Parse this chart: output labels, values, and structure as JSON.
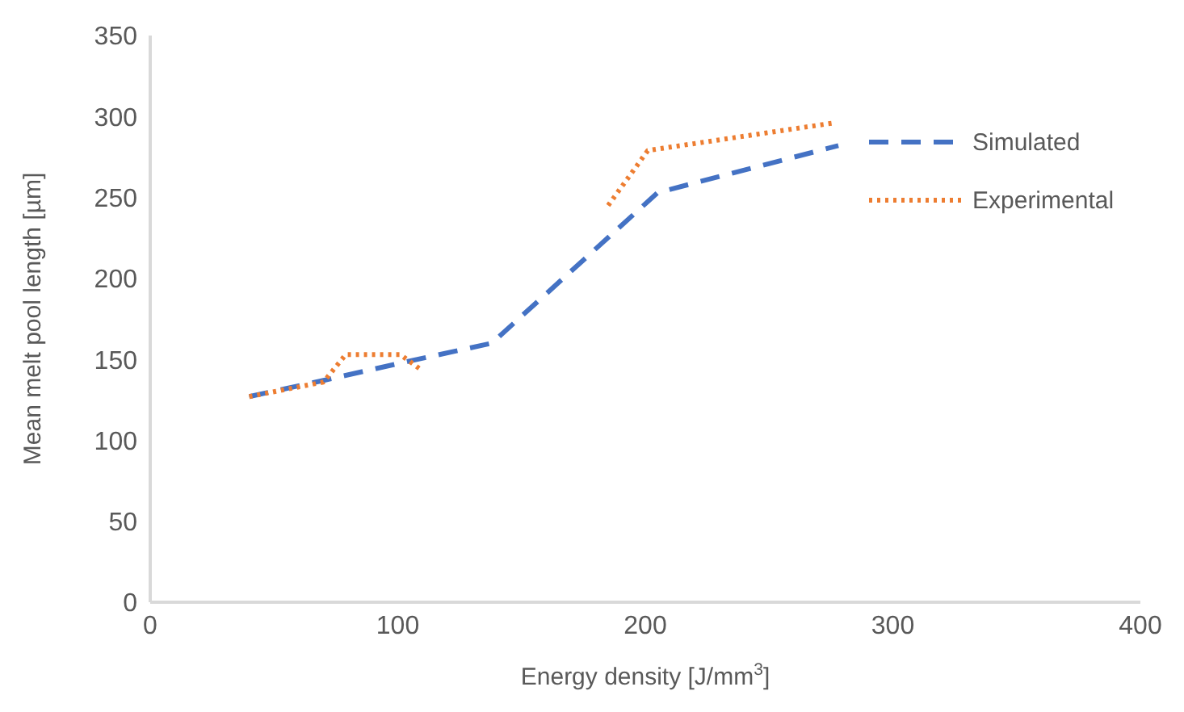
{
  "chart_data": {
    "type": "line",
    "xlabel": "Energy density [J/mm$^{3}$]",
    "ylabel": "Mean melt pool length [µm]",
    "xlim": [
      0,
      400
    ],
    "xticks": [
      0,
      100,
      200,
      300,
      400
    ],
    "ylim": [
      0,
      350
    ],
    "yticks": [
      0,
      50,
      100,
      150,
      200,
      250,
      300,
      350
    ],
    "grid": false,
    "legend": "right",
    "marker": "none",
    "series": [
      {
        "name": "Simulated",
        "color": "#4472c4",
        "line_style": "dashed",
        "x": [
          40,
          70,
          105,
          138,
          205,
          278
        ],
        "values": [
          127,
          137,
          149,
          160,
          253,
          282
        ]
      },
      {
        "name": "Experimental",
        "color": "#ed7d31",
        "line_style": "dotted",
        "x": [
          40,
          70,
          79,
          101,
          109,
          140,
          185,
          201,
          276
        ],
        "values": [
          127,
          136,
          153,
          153,
          144,
          null,
          245,
          279,
          296
        ]
      }
    ]
  }
}
